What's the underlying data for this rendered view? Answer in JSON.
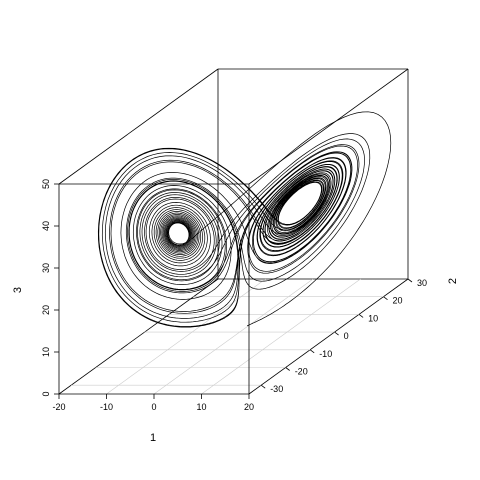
{
  "chart_data": {
    "type": "line",
    "title": "",
    "xlabel": "1",
    "ylabel": "2",
    "zlabel": "3",
    "xlim": [
      -20,
      20
    ],
    "ylim": [
      -35,
      30
    ],
    "zlim": [
      0,
      50
    ],
    "x_ticks": [
      "-20",
      "-10",
      "0",
      "10",
      "20"
    ],
    "y_ticks": [
      "-30",
      "-20",
      "-10",
      "0",
      "10",
      "20",
      "30"
    ],
    "z_ticks": [
      "0",
      "10",
      "20",
      "30",
      "40",
      "50"
    ],
    "box": true,
    "grid_on_floor": true,
    "line_color": "#000000",
    "series": [
      {
        "generator": "lorenz",
        "sigma": 10,
        "rho": 28,
        "beta": 2.6667,
        "initial": [
          1,
          1,
          1
        ],
        "dt": 0.005,
        "steps": 10000
      }
    ]
  }
}
